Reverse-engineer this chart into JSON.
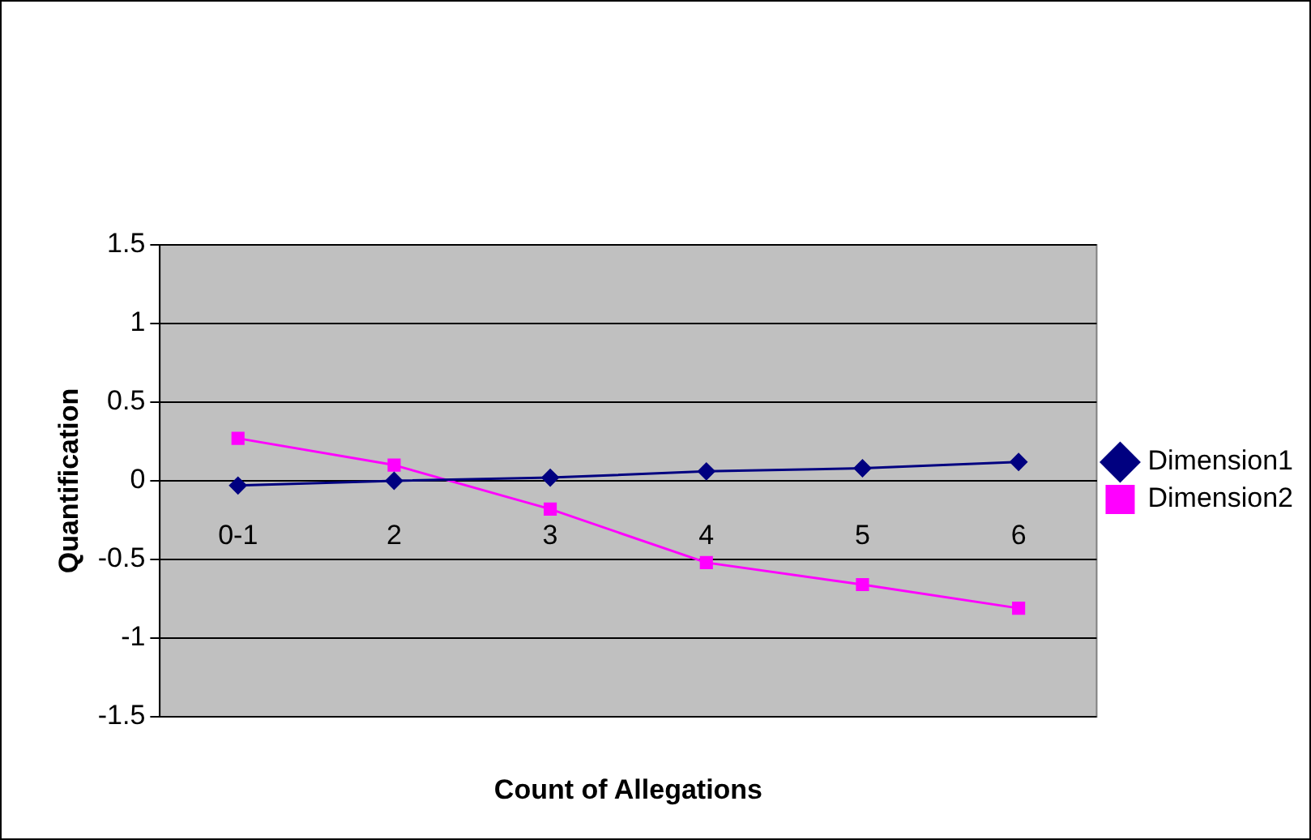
{
  "chart_data": {
    "type": "line",
    "xlabel": "Count of Allegations",
    "ylabel": "Quantification",
    "categories": [
      "0-1",
      "2",
      "3",
      "4",
      "5",
      "6"
    ],
    "series": [
      {
        "name": "Dimension1",
        "color": "#000080",
        "marker": "diamond",
        "values": [
          -0.03,
          0,
          0.02,
          0.06,
          0.08,
          0.12
        ]
      },
      {
        "name": "Dimension2",
        "color": "#ff00ff",
        "marker": "square",
        "values": [
          0.27,
          0.1,
          -0.18,
          -0.52,
          -0.66,
          -0.81
        ]
      }
    ],
    "ylim": [
      -1.5,
      1.5
    ],
    "yticks": [
      -1.5,
      -1,
      -0.5,
      0,
      0.5,
      1,
      1.5
    ],
    "grid": "y",
    "legend": "right"
  }
}
